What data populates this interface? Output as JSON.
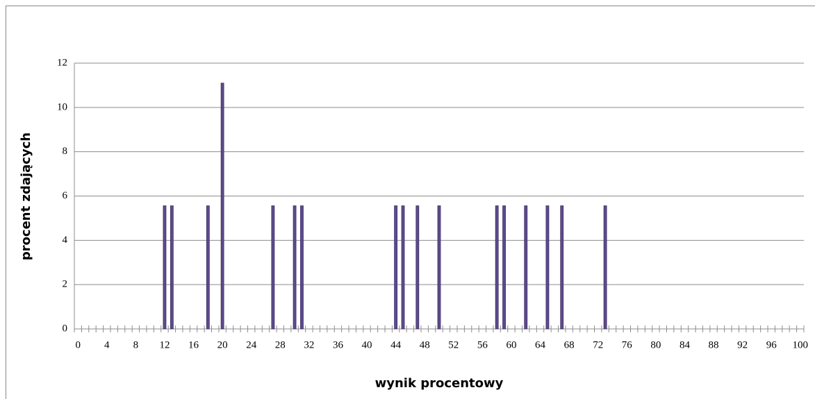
{
  "chart_data": {
    "type": "bar",
    "x_label": "wynik procentowy",
    "y_label": "procent zdających",
    "categories": [
      0,
      null,
      null,
      null,
      4,
      null,
      null,
      null,
      8,
      null,
      null,
      null,
      12,
      null,
      null,
      null,
      16,
      null,
      null,
      null,
      20,
      null,
      null,
      null,
      24,
      null,
      null,
      null,
      28,
      null,
      null,
      null,
      32,
      null,
      null,
      null,
      36,
      null,
      null,
      null,
      40,
      null,
      null,
      null,
      44,
      null,
      null,
      null,
      48,
      null,
      null,
      null,
      52,
      null,
      null,
      null,
      56,
      null,
      null,
      null,
      60,
      null,
      null,
      null,
      64,
      null,
      null,
      null,
      68,
      null,
      null,
      null,
      72,
      null,
      null,
      null,
      76,
      null,
      null,
      null,
      80,
      null,
      null,
      null,
      84,
      null,
      null,
      null,
      88,
      null,
      null,
      null,
      92,
      null,
      null,
      null,
      96,
      null,
      null,
      null,
      100
    ],
    "values": [
      0,
      0,
      0,
      0,
      0,
      0,
      0,
      0,
      0,
      0,
      0,
      0,
      5.56,
      5.56,
      0,
      0,
      0,
      0,
      5.56,
      0,
      11.1,
      0,
      0,
      0,
      0,
      0,
      0,
      5.56,
      0,
      0,
      5.56,
      5.56,
      0,
      0,
      0,
      0,
      0,
      0,
      0,
      0,
      0,
      0,
      0,
      0,
      5.56,
      5.56,
      0,
      5.56,
      0,
      0,
      5.56,
      0,
      0,
      0,
      0,
      0,
      0,
      0,
      5.56,
      5.56,
      0,
      0,
      5.56,
      0,
      0,
      5.56,
      0,
      5.56,
      0,
      0,
      0,
      0,
      0,
      5.56,
      0,
      0,
      0,
      0,
      0,
      0,
      0,
      0,
      0,
      0,
      0,
      0,
      0,
      0,
      0,
      0,
      0,
      0,
      0,
      0,
      0,
      0,
      0,
      0,
      0,
      0,
      0
    ],
    "color": "#5e4b8c",
    "ylim": [
      0,
      12
    ],
    "yticks": [
      0,
      2,
      4,
      6,
      8,
      10,
      12
    ],
    "grid": true
  }
}
